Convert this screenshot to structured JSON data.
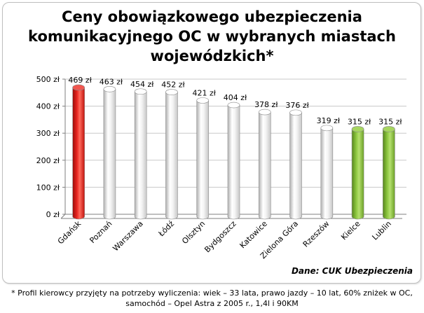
{
  "title_lines": [
    "Ceny obowiązkowego ubezpieczenia",
    "komunikacyjnego OC w wybranych miastach",
    "wojewódzkich*"
  ],
  "source": "Dane: CUK Ubezpieczenia",
  "footnote_lines": [
    "* Profil kierowcy przyjęty na potrzeby wyliczenia: wiek – 33 lata, prawo jazdy – 10 lat, 60% zniżek w OC,",
    "samochód – Opel Astra z 2005 r., 1,4l i 90KM"
  ],
  "colors": {
    "highlight_red": "#e8241f",
    "neutral_white": "#f4f4f4",
    "green": "#8cc63f",
    "gridline": "#c8c8c8",
    "axis": "#7f7f7f"
  },
  "chart_data": {
    "type": "bar",
    "title": "Ceny obowiązkowego ubezpieczenia komunikacyjnego OC w wybranych miastach wojewódzkich*",
    "xlabel": "",
    "ylabel": "",
    "ylim": [
      0,
      500
    ],
    "yticks": [
      0,
      100,
      200,
      300,
      400,
      500
    ],
    "ytick_labels": [
      "0 zł",
      "100 zł",
      "200 zł",
      "300 zł",
      "400 zł",
      "500 zł"
    ],
    "grid": true,
    "categories": [
      "Gdańsk",
      "Poznań",
      "Warszawa",
      "Łódź",
      "Olsztyn",
      "Bydgoszcz",
      "Katowice",
      "Zielona Góra",
      "Rzeszów",
      "Kielce",
      "Lublin"
    ],
    "values": [
      469,
      463,
      454,
      452,
      421,
      404,
      378,
      376,
      319,
      315,
      315
    ],
    "value_labels": [
      "469 zł",
      "463 zł",
      "454 zł",
      "452 zł",
      "421 zł",
      "404 zł",
      "378 zł",
      "376 zł",
      "319 zł",
      "315 zł",
      "315 zł"
    ],
    "bar_colors": [
      "red",
      "white",
      "white",
      "white",
      "white",
      "white",
      "white",
      "white",
      "white",
      "green",
      "green"
    ]
  }
}
